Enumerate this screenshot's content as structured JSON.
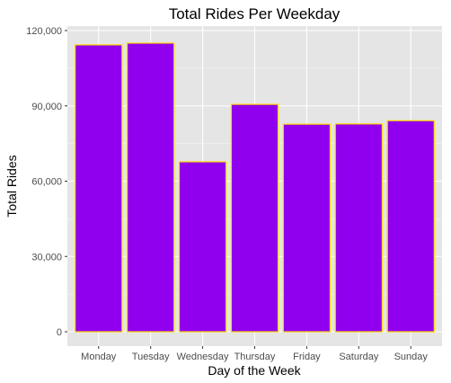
{
  "chart_data": {
    "type": "bar",
    "title": "Total Rides Per Weekday",
    "xlabel": "Day of the Week",
    "ylabel": "Total Rides",
    "categories": [
      "Monday",
      "Tuesday",
      "Wednesday",
      "Thursday",
      "Friday",
      "Saturday",
      "Sunday"
    ],
    "values": [
      114300,
      115000,
      67700,
      90600,
      82700,
      82800,
      84100
    ],
    "ylim": [
      0,
      123000
    ],
    "yticks": [
      0,
      30000,
      60000,
      90000,
      120000
    ],
    "ytick_labels": [
      "0",
      "30,000",
      "60,000",
      "90,000",
      "120,000"
    ],
    "grid": true,
    "colors": {
      "bar_fill": "#9000EE",
      "bar_stroke": "#FFD700",
      "panel_bg": "#E5E5E5",
      "grid_major": "#FFFFFF"
    }
  }
}
